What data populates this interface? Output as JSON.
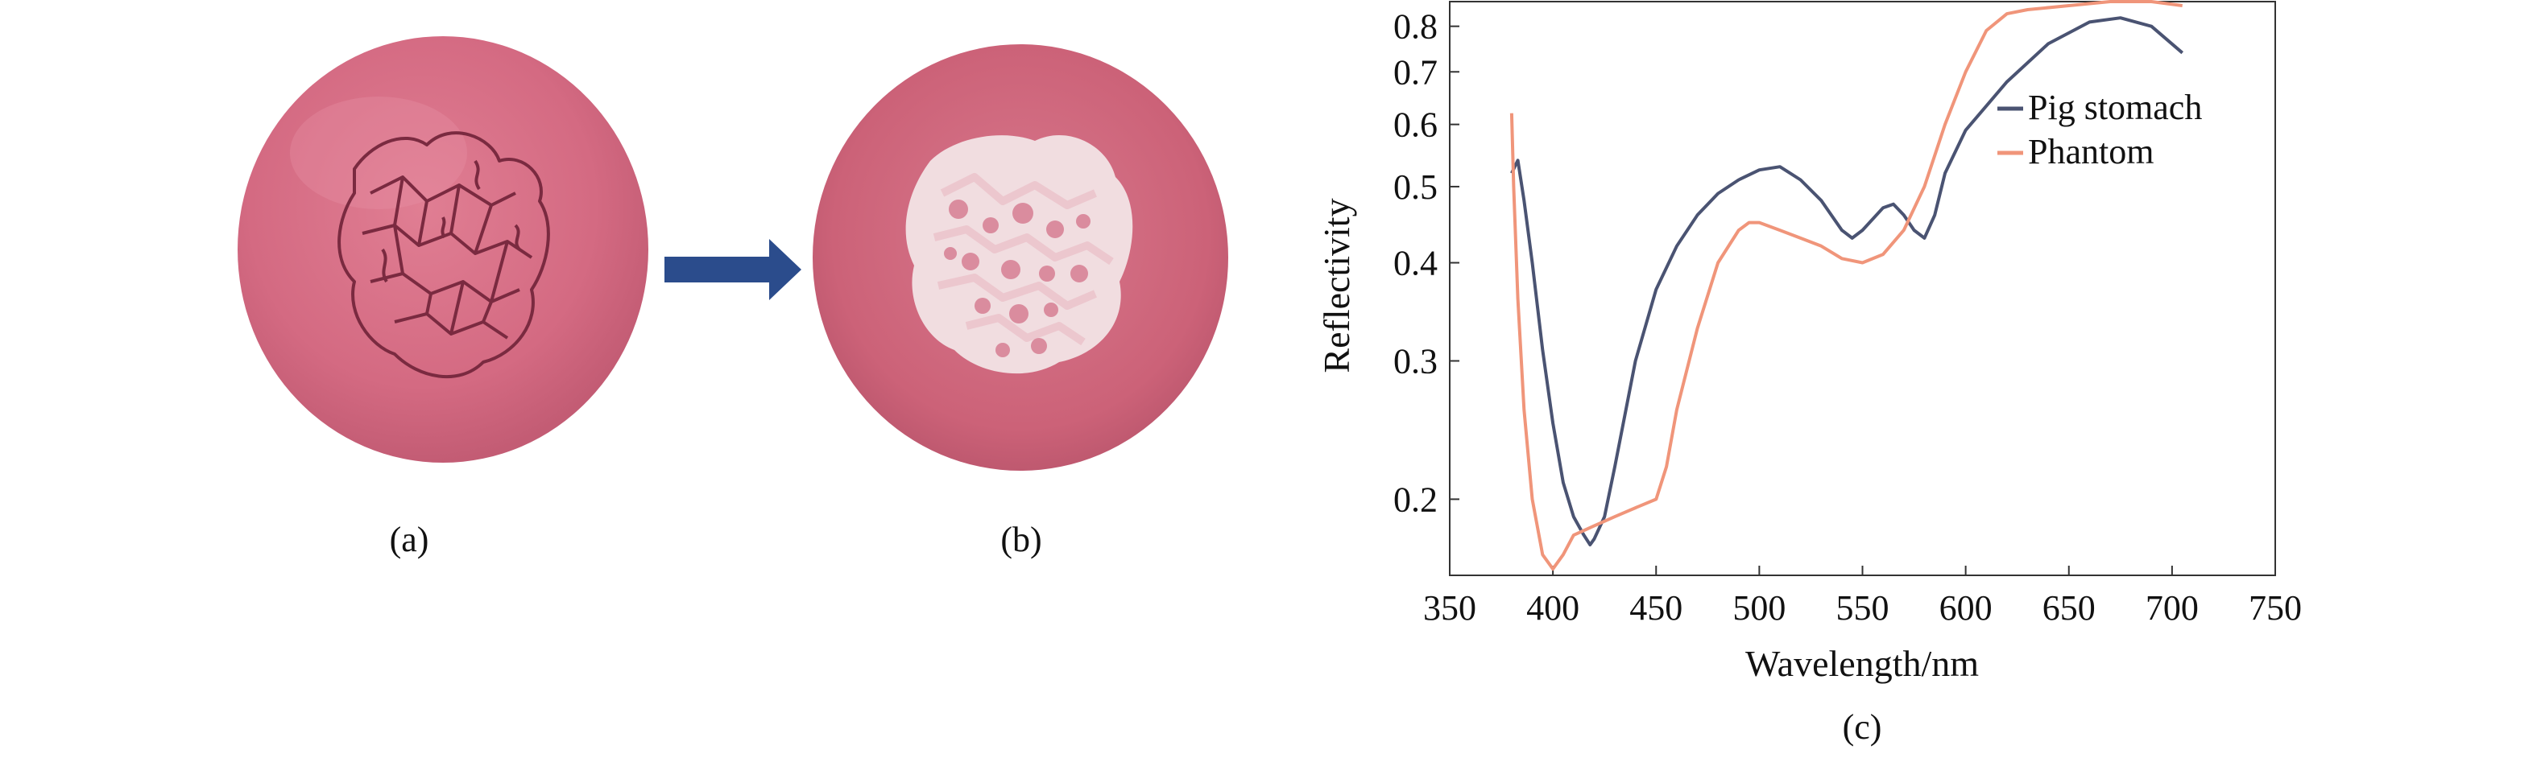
{
  "panels": {
    "a": {
      "label": "(a)"
    },
    "b": {
      "label": "(b)"
    },
    "c": {
      "label": "(c)"
    }
  },
  "colors": {
    "pig_stomach": "#4a5372",
    "phantom": "#f0957a",
    "arrow": "#2b4c8c",
    "tissue_pink": "#d86f86"
  },
  "chart_data": {
    "type": "line",
    "xlabel": "Wavelength/nm",
    "ylabel": "Reflectivity",
    "xlim": [
      350,
      750
    ],
    "ylim": [
      0.16,
      0.86
    ],
    "yscale": "log",
    "xticks": [
      350,
      400,
      450,
      500,
      550,
      600,
      650,
      700,
      750
    ],
    "yticks": [
      0.2,
      0.3,
      0.4,
      0.5,
      0.6,
      0.7,
      0.8
    ],
    "grid": false,
    "legend": "top-right",
    "series": [
      {
        "name": "Pig stomach",
        "color": "#4a5372",
        "x": [
          380,
          383,
          386,
          390,
          395,
          400,
          405,
          410,
          415,
          418,
          420,
          425,
          430,
          440,
          450,
          460,
          470,
          480,
          490,
          500,
          510,
          515,
          520,
          530,
          540,
          545,
          550,
          560,
          565,
          570,
          575,
          580,
          585,
          590,
          600,
          620,
          640,
          660,
          675,
          690,
          705
        ],
        "y": [
          0.52,
          0.54,
          0.48,
          0.4,
          0.31,
          0.25,
          0.21,
          0.19,
          0.18,
          0.175,
          0.178,
          0.19,
          0.22,
          0.3,
          0.37,
          0.42,
          0.46,
          0.49,
          0.51,
          0.525,
          0.53,
          0.52,
          0.51,
          0.48,
          0.44,
          0.43,
          0.44,
          0.47,
          0.475,
          0.46,
          0.44,
          0.43,
          0.46,
          0.52,
          0.59,
          0.68,
          0.76,
          0.81,
          0.82,
          0.8,
          0.74
        ]
      },
      {
        "name": "Phantom",
        "color": "#f0957a",
        "x": [
          380,
          381,
          383,
          386,
          390,
          395,
          400,
          405,
          410,
          420,
          430,
          440,
          450,
          455,
          460,
          470,
          480,
          490,
          495,
          500,
          510,
          520,
          530,
          540,
          550,
          560,
          570,
          580,
          590,
          600,
          610,
          620,
          630,
          650,
          670,
          690,
          705
        ],
        "y": [
          0.62,
          0.5,
          0.36,
          0.26,
          0.2,
          0.17,
          0.163,
          0.17,
          0.18,
          0.185,
          0.19,
          0.195,
          0.2,
          0.22,
          0.26,
          0.33,
          0.4,
          0.44,
          0.45,
          0.45,
          0.44,
          0.43,
          0.42,
          0.405,
          0.4,
          0.41,
          0.44,
          0.5,
          0.6,
          0.7,
          0.79,
          0.83,
          0.84,
          0.85,
          0.86,
          0.86,
          0.85
        ]
      }
    ]
  }
}
